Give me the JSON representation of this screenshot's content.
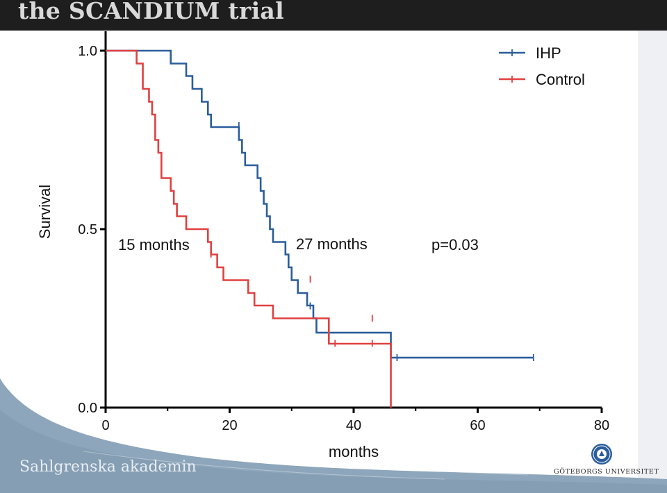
{
  "header": {
    "title": "the SCANDIUM trial"
  },
  "footer": {
    "left_text": "Sahlgrenska akademin",
    "right_text": "GÖTEBORGS UNIVERSITET"
  },
  "colors": {
    "ihp": "#2a5d9c",
    "control": "#e04040",
    "header_bg": "#1e1e1e",
    "band": "#8ea6bb"
  },
  "chart_data": {
    "type": "line",
    "xlabel": "months",
    "ylabel": "Survival",
    "xlim": [
      0,
      80
    ],
    "ylim": [
      0.0,
      1.0
    ],
    "x_ticks": [
      "0",
      "20",
      "40",
      "60",
      "80"
    ],
    "y_ticks": [
      "0.0",
      "0.5",
      "1.0"
    ],
    "legend_position": "top-right",
    "series": [
      {
        "name": "IHP",
        "color": "#2a5d9c",
        "steps": [
          [
            0,
            1.0
          ],
          [
            10.5,
            0.964
          ],
          [
            13,
            0.929
          ],
          [
            14,
            0.893
          ],
          [
            15.5,
            0.857
          ],
          [
            16.5,
            0.821
          ],
          [
            17,
            0.786
          ],
          [
            21.5,
            0.75
          ],
          [
            22,
            0.714
          ],
          [
            22.5,
            0.679
          ],
          [
            24.5,
            0.643
          ],
          [
            25,
            0.607
          ],
          [
            25.5,
            0.571
          ],
          [
            26,
            0.536
          ],
          [
            26.5,
            0.5
          ],
          [
            27,
            0.464
          ],
          [
            29,
            0.429
          ],
          [
            29.5,
            0.393
          ],
          [
            30,
            0.357
          ],
          [
            31,
            0.321
          ],
          [
            32.5,
            0.286
          ],
          [
            33.5,
            0.25
          ],
          [
            34,
            0.21
          ],
          [
            46,
            0.14
          ],
          [
            69,
            0.14
          ]
        ],
        "censored": [
          [
            21.5,
            0.79
          ],
          [
            33,
            0.285
          ],
          [
            47,
            0.14
          ],
          [
            69,
            0.14
          ]
        ]
      },
      {
        "name": "Control",
        "color": "#e04040",
        "steps": [
          [
            0,
            1.0
          ],
          [
            5,
            0.964
          ],
          [
            6,
            0.893
          ],
          [
            7,
            0.857
          ],
          [
            7.5,
            0.821
          ],
          [
            8,
            0.75
          ],
          [
            8.5,
            0.714
          ],
          [
            9,
            0.643
          ],
          [
            10.5,
            0.607
          ],
          [
            11,
            0.571
          ],
          [
            11.5,
            0.536
          ],
          [
            13,
            0.5
          ],
          [
            16.5,
            0.464
          ],
          [
            17,
            0.429
          ],
          [
            18,
            0.393
          ],
          [
            19,
            0.357
          ],
          [
            23,
            0.321
          ],
          [
            24,
            0.286
          ],
          [
            27,
            0.25
          ],
          [
            36,
            0.179
          ],
          [
            46,
            0.0
          ]
        ],
        "censored": [
          [
            17,
            0.43
          ],
          [
            33,
            0.36
          ],
          [
            43,
            0.25
          ],
          [
            37,
            0.18
          ],
          [
            43,
            0.18
          ]
        ]
      }
    ],
    "annotations": [
      {
        "text": "15 months",
        "x": 13,
        "y": 0.5
      },
      {
        "text": "27 months",
        "x": 27,
        "y": 0.5
      },
      {
        "text": "p=0.03",
        "x": 60,
        "y": 0.5
      }
    ]
  }
}
